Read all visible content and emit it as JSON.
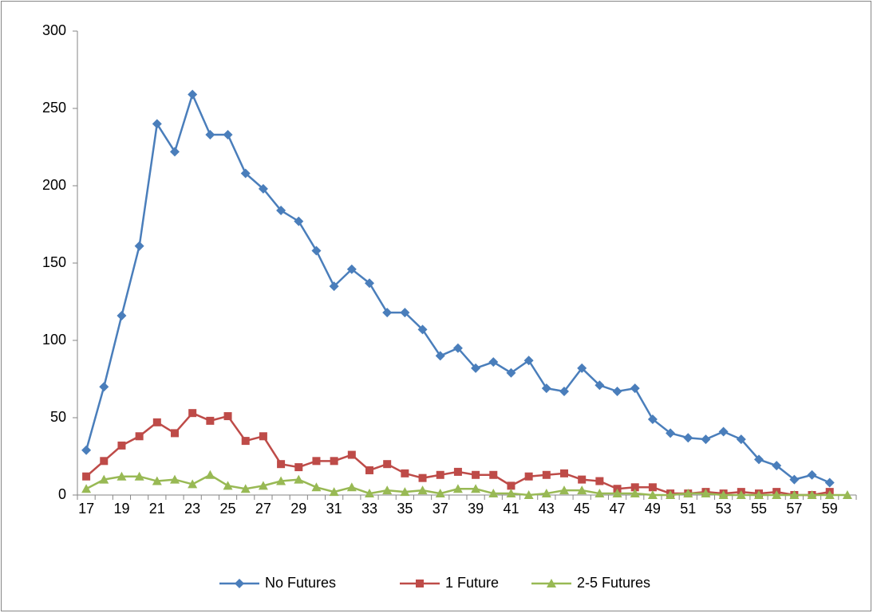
{
  "chart_data": {
    "type": "line",
    "categories": [
      17,
      null,
      19,
      null,
      21,
      null,
      23,
      null,
      25,
      null,
      27,
      null,
      29,
      null,
      31,
      null,
      33,
      null,
      35,
      null,
      37,
      null,
      39,
      null,
      41,
      null,
      43,
      null,
      45,
      null,
      47,
      null,
      49,
      null,
      51,
      null,
      53,
      null,
      55,
      null,
      57,
      null,
      59,
      null
    ],
    "series": [
      {
        "name": "No Futures",
        "color": "#4a7ebb",
        "marker": "diamond",
        "values": [
          29,
          70,
          116,
          161,
          240,
          222,
          259,
          233,
          233,
          208,
          198,
          184,
          177,
          158,
          135,
          146,
          137,
          118,
          118,
          107,
          90,
          95,
          82,
          86,
          79,
          87,
          69,
          67,
          82,
          71,
          67,
          69,
          49,
          40,
          37,
          36,
          41,
          36,
          23,
          19,
          10,
          13,
          8,
          null
        ]
      },
      {
        "name": "1 Future",
        "color": "#be4b48",
        "marker": "square",
        "values": [
          12,
          22,
          32,
          38,
          47,
          40,
          53,
          48,
          51,
          35,
          38,
          20,
          18,
          22,
          22,
          26,
          16,
          20,
          14,
          11,
          13,
          15,
          13,
          13,
          6,
          12,
          13,
          14,
          10,
          9,
          4,
          5,
          5,
          1,
          1,
          2,
          1,
          2,
          1,
          2,
          0,
          0,
          2,
          null
        ]
      },
      {
        "name": "2-5 Futures",
        "color": "#98b954",
        "marker": "triangle",
        "values": [
          4,
          10,
          12,
          12,
          9,
          10,
          7,
          13,
          6,
          4,
          6,
          9,
          10,
          5,
          2,
          5,
          1,
          3,
          2,
          3,
          1,
          4,
          4,
          1,
          1,
          0,
          1,
          3,
          3,
          1,
          1,
          1,
          0,
          0,
          1,
          1,
          0,
          0,
          0,
          0,
          0,
          0,
          0,
          0
        ]
      }
    ],
    "ylim": [
      0,
      300
    ],
    "yticks": [
      0,
      50,
      100,
      150,
      200,
      250,
      300
    ],
    "grid": false,
    "legend": "bottom"
  }
}
